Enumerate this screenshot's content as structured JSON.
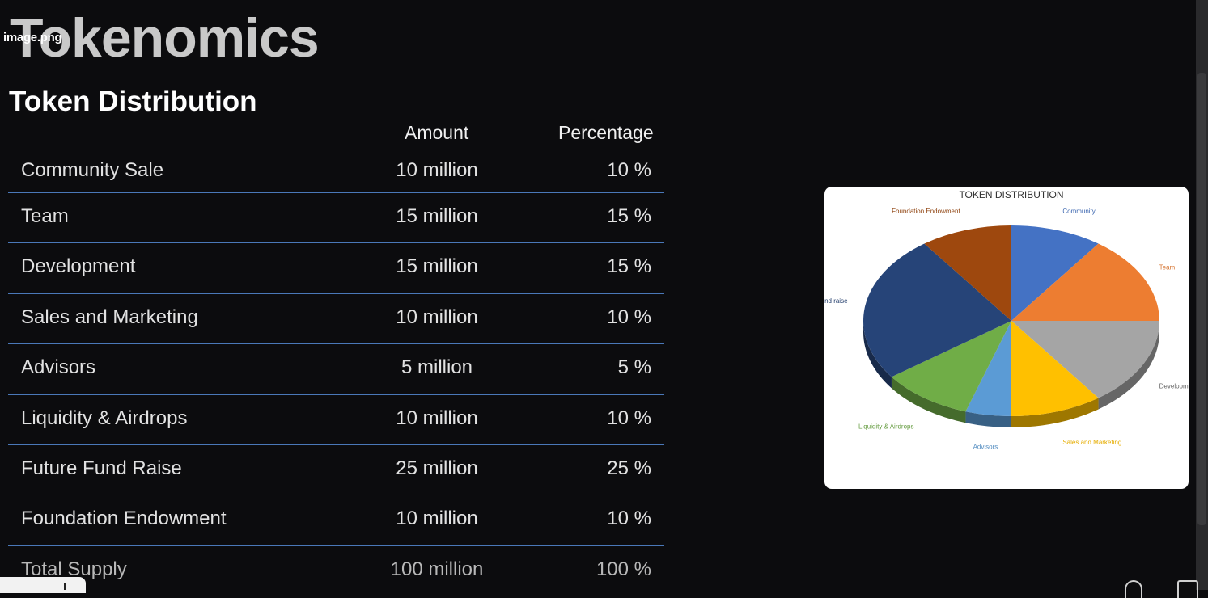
{
  "page": {
    "title": "Tokenomics",
    "file_label": "image.png",
    "section_title": "Token Distribution"
  },
  "table": {
    "headers": {
      "amount": "Amount",
      "percentage": "Percentage"
    },
    "rows": [
      {
        "category": "Community Sale",
        "amount": "10 million",
        "percentage": "10 %"
      },
      {
        "category": "Team",
        "amount": "15 million",
        "percentage": "15 %"
      },
      {
        "category": "Development",
        "amount": "15 million",
        "percentage": "15 %"
      },
      {
        "category": "Sales and Marketing",
        "amount": "10 million",
        "percentage": "10 %"
      },
      {
        "category": "Advisors",
        "amount": "5 million",
        "percentage": "5 %"
      },
      {
        "category": "Liquidity & Airdrops",
        "amount": "10 million",
        "percentage": "10 %"
      },
      {
        "category": "Future Fund Raise",
        "amount": "25 million",
        "percentage": "25 %"
      },
      {
        "category": "Foundation Endowment",
        "amount": "10 million",
        "percentage": "10 %"
      },
      {
        "category": "Total Supply",
        "amount": "100 million",
        "percentage": "100 %"
      }
    ]
  },
  "chart_data": {
    "type": "pie",
    "title": "TOKEN DISTRIBUTION",
    "slices": [
      {
        "name": "Community",
        "value": 10,
        "color": "#4472c4"
      },
      {
        "name": "Team",
        "value": 15,
        "color": "#ed7d31"
      },
      {
        "name": "Development",
        "value": 15,
        "color": "#a5a5a5"
      },
      {
        "name": "Sales and Marketing",
        "value": 10,
        "color": "#ffc000"
      },
      {
        "name": "Advisors",
        "value": 5,
        "color": "#5b9bd5"
      },
      {
        "name": "Liquidity & Airdrops",
        "value": 10,
        "color": "#70ad47"
      },
      {
        "name": "Future Fund raise",
        "value": 25,
        "color": "#264478"
      },
      {
        "name": "Foundation Endowment",
        "value": 10,
        "color": "#9e480e"
      }
    ]
  }
}
